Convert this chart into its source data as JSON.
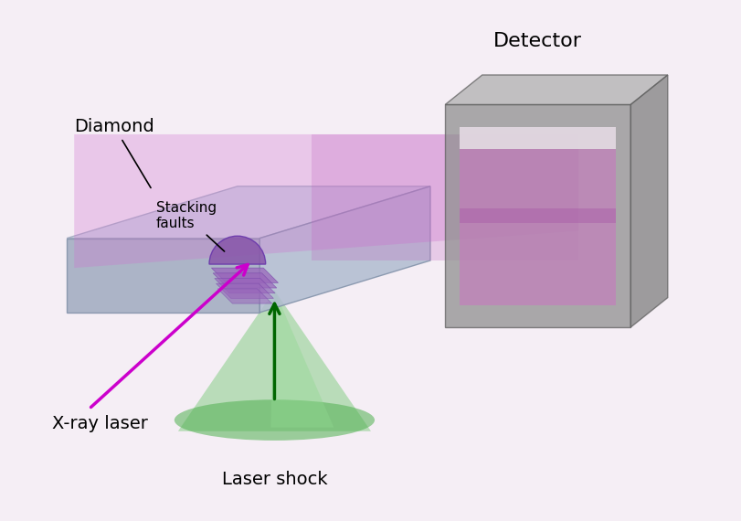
{
  "background_color": "#f8eef8",
  "title": "",
  "labels": {
    "diamond": "Diamond",
    "stacking_faults": "Stacking\nfaults",
    "xray_laser": "X-ray laser",
    "laser_shock": "Laser shock",
    "detector": "Detector"
  },
  "colors": {
    "diamond_top": "#c8cfe0",
    "diamond_front": "#a8b4cc",
    "diamond_side": "#b8c4d8",
    "xray_beam": "#e080e0",
    "xray_beam_alpha": 0.35,
    "laser_cone": "#80c880",
    "laser_cone_alpha": 0.5,
    "detector_body": "#909090",
    "detector_screen": "#c080c0",
    "stacking_fault_color": "#9060a0",
    "annotation_color": "#000000",
    "xray_arrow_color": "#cc00cc",
    "laser_arrow_color": "#006600",
    "background_gradient_start": "#f0e8f8",
    "background_gradient_end": "#ffffff"
  }
}
